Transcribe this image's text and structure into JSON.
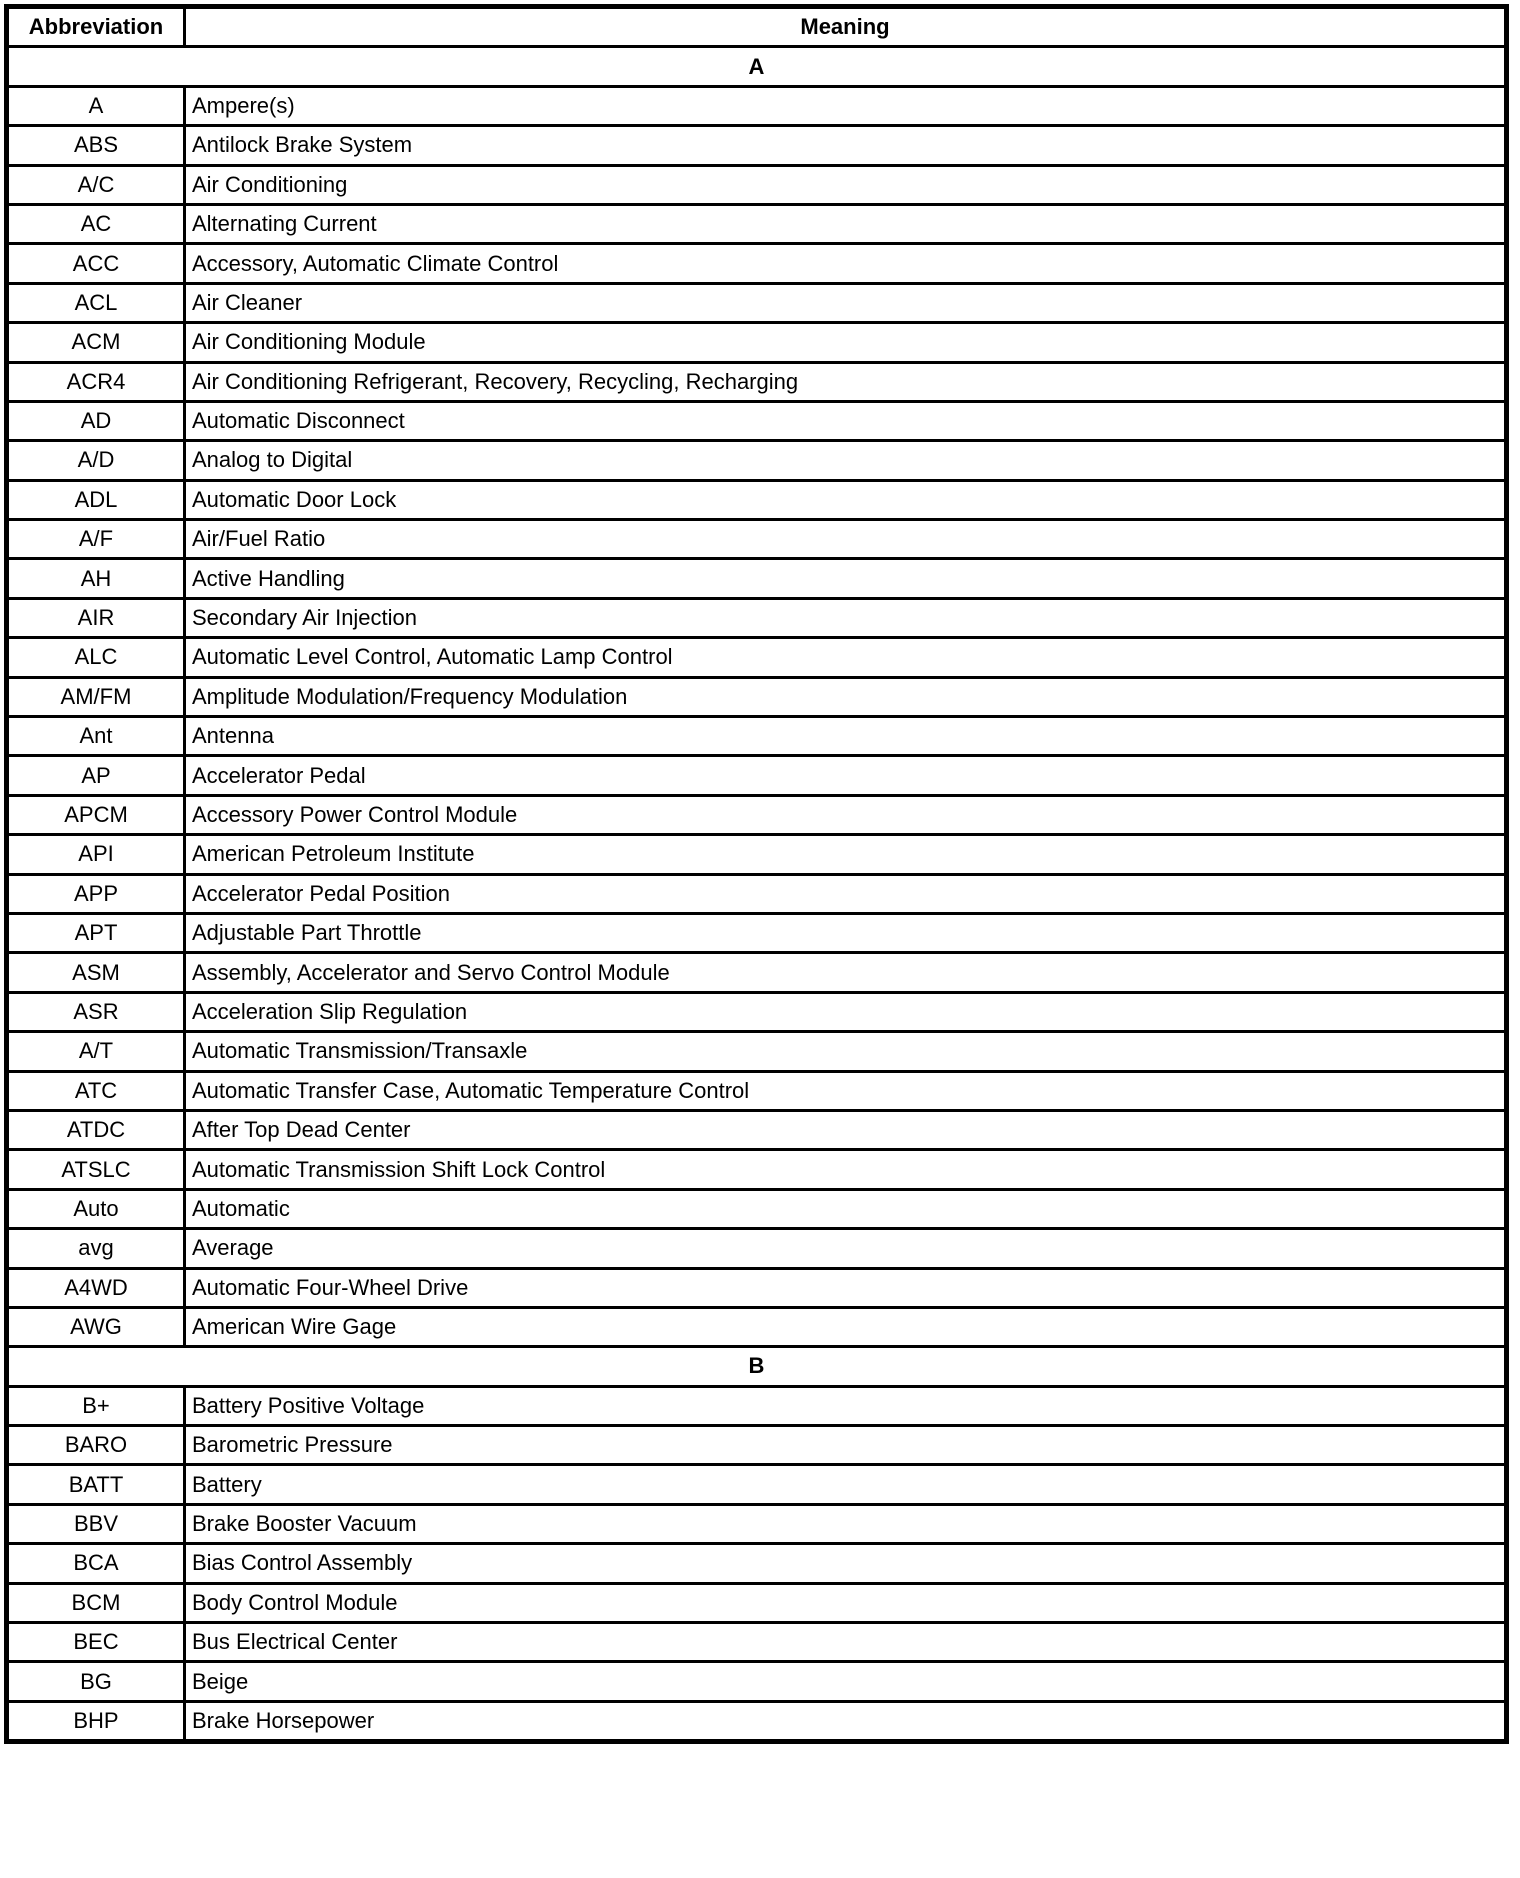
{
  "headers": {
    "abbreviation": "Abbreviation",
    "meaning": "Meaning"
  },
  "sections": [
    {
      "letter": "A",
      "rows": [
        [
          "A",
          "Ampere(s)"
        ],
        [
          "ABS",
          "Antilock Brake System"
        ],
        [
          "A/C",
          "Air Conditioning"
        ],
        [
          "AC",
          "Alternating Current"
        ],
        [
          "ACC",
          "Accessory, Automatic Climate Control"
        ],
        [
          "ACL",
          "Air Cleaner"
        ],
        [
          "ACM",
          "Air Conditioning Module"
        ],
        [
          "ACR4",
          "Air Conditioning Refrigerant, Recovery, Recycling, Recharging"
        ],
        [
          "AD",
          "Automatic Disconnect"
        ],
        [
          "A/D",
          "Analog to Digital"
        ],
        [
          "ADL",
          "Automatic Door Lock"
        ],
        [
          "A/F",
          "Air/Fuel Ratio"
        ],
        [
          "AH",
          "Active Handling"
        ],
        [
          "AIR",
          "Secondary Air Injection"
        ],
        [
          "ALC",
          "Automatic Level Control, Automatic Lamp Control"
        ],
        [
          "AM/FM",
          "Amplitude Modulation/Frequency Modulation"
        ],
        [
          "Ant",
          "Antenna"
        ],
        [
          "AP",
          "Accelerator Pedal"
        ],
        [
          "APCM",
          "Accessory Power Control Module"
        ],
        [
          "API",
          "American Petroleum Institute"
        ],
        [
          "APP",
          "Accelerator Pedal Position"
        ],
        [
          "APT",
          "Adjustable Part Throttle"
        ],
        [
          "ASM",
          "Assembly, Accelerator and Servo Control Module"
        ],
        [
          "ASR",
          "Acceleration Slip Regulation"
        ],
        [
          "A/T",
          "Automatic Transmission/Transaxle"
        ],
        [
          "ATC",
          "Automatic Transfer Case, Automatic Temperature Control"
        ],
        [
          "ATDC",
          "After Top Dead Center"
        ],
        [
          "ATSLC",
          "Automatic Transmission Shift Lock Control"
        ],
        [
          "Auto",
          "Automatic"
        ],
        [
          "avg",
          "Average"
        ],
        [
          "A4WD",
          "Automatic Four-Wheel Drive"
        ],
        [
          "AWG",
          "American Wire Gage"
        ]
      ]
    },
    {
      "letter": "B",
      "rows": [
        [
          "B+",
          "Battery Positive Voltage"
        ],
        [
          "BARO",
          "Barometric Pressure"
        ],
        [
          "BATT",
          "Battery"
        ],
        [
          "BBV",
          "Brake Booster Vacuum"
        ],
        [
          "BCA",
          "Bias Control Assembly"
        ],
        [
          "BCM",
          "Body Control Module"
        ],
        [
          "BEC",
          "Bus Electrical Center"
        ],
        [
          "BG",
          "Beige"
        ],
        [
          "BHP",
          "Brake Horsepower"
        ]
      ]
    }
  ]
}
